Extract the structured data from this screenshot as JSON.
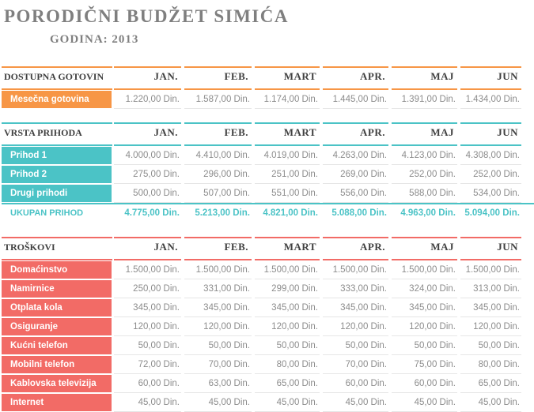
{
  "header": {
    "title": "PORODIČNI BUDŽET SIMIĆA",
    "year": "GODINA: 2013"
  },
  "months": [
    "JAN.",
    "FEB.",
    "MART",
    "APR.",
    "MAJ",
    "JUN"
  ],
  "sections": [
    {
      "key": "cash",
      "title": "DOSTUPNA GOTOVIN",
      "accent": "#f79646",
      "rows": [
        {
          "label": "Mesečna gotovina",
          "values": [
            "1.220,00 Din.",
            "1.587,00 Din.",
            "1.174,00 Din.",
            "1.445,00 Din.",
            "1.391,00 Din.",
            "1.434,00 Din."
          ]
        }
      ]
    },
    {
      "key": "income",
      "title": "VRSTA PRIHODA",
      "accent": "#4bc3c6",
      "rows": [
        {
          "label": "Prihod 1",
          "values": [
            "4.000,00 Din.",
            "4.410,00 Din.",
            "4.019,00 Din.",
            "4.263,00 Din.",
            "4.123,00 Din.",
            "4.308,00 Din."
          ]
        },
        {
          "label": "Prihod 2",
          "values": [
            "275,00 Din.",
            "296,00 Din.",
            "251,00 Din.",
            "269,00 Din.",
            "252,00 Din.",
            "252,00 Din."
          ]
        },
        {
          "label": "Drugi prihodi",
          "values": [
            "500,00 Din.",
            "507,00 Din.",
            "551,00 Din.",
            "556,00 Din.",
            "588,00 Din.",
            "534,00 Din."
          ]
        }
      ],
      "total": {
        "label": "UKUPAN PRIHOD",
        "values": [
          "4.775,00 Din.",
          "5.213,00 Din.",
          "4.821,00 Din.",
          "5.088,00 Din.",
          "4.963,00 Din.",
          "5.094,00 Din."
        ]
      }
    },
    {
      "key": "expenses",
      "title": "TROŠKOVI",
      "accent": "#f26b66",
      "rows": [
        {
          "label": "Domaćinstvo",
          "values": [
            "1.500,00 Din.",
            "1.500,00 Din.",
            "1.500,00 Din.",
            "1.500,00 Din.",
            "1.500,00 Din.",
            "1.500,00 Din."
          ]
        },
        {
          "label": "Namirnice",
          "values": [
            "250,00 Din.",
            "331,00 Din.",
            "299,00 Din.",
            "333,00 Din.",
            "324,00 Din.",
            "313,00 Din."
          ]
        },
        {
          "label": "Otplata kola",
          "values": [
            "345,00 Din.",
            "345,00 Din.",
            "345,00 Din.",
            "345,00 Din.",
            "345,00 Din.",
            "345,00 Din."
          ]
        },
        {
          "label": "Osiguranje",
          "values": [
            "120,00 Din.",
            "120,00 Din.",
            "120,00 Din.",
            "120,00 Din.",
            "120,00 Din.",
            "120,00 Din."
          ]
        },
        {
          "label": "Kućni telefon",
          "values": [
            "50,00 Din.",
            "50,00 Din.",
            "50,00 Din.",
            "50,00 Din.",
            "50,00 Din.",
            "50,00 Din."
          ]
        },
        {
          "label": "Mobilni telefon",
          "values": [
            "72,00 Din.",
            "70,00 Din.",
            "80,00 Din.",
            "70,00 Din.",
            "75,00 Din.",
            "80,00 Din."
          ]
        },
        {
          "label": "Kablovska televizija",
          "values": [
            "60,00 Din.",
            "63,00 Din.",
            "65,00 Din.",
            "60,00 Din.",
            "60,00 Din.",
            "65,00 Din."
          ]
        },
        {
          "label": "Internet",
          "values": [
            "45,00 Din.",
            "45,00 Din.",
            "45,00 Din.",
            "45,00 Din.",
            "45,00 Din.",
            "45,00 Din."
          ]
        }
      ]
    }
  ]
}
